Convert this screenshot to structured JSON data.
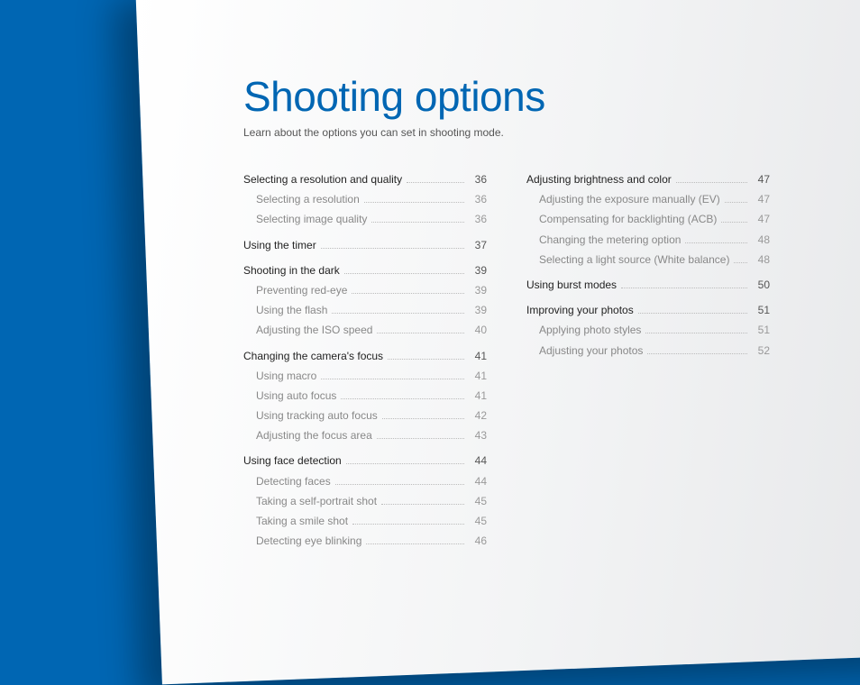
{
  "title": "Shooting options",
  "subtitle": "Learn about the options you can set in shooting mode.",
  "colors": {
    "background": "#0066b3",
    "title": "#0066b3",
    "heading_text": "#222222",
    "sub_text": "#888888",
    "page_gradient_start": "#ffffff",
    "page_gradient_end": "#e5e6e8",
    "dot_leader": "#bbbbbb"
  },
  "typography": {
    "title_fontsize": 46,
    "title_weight": 300,
    "body_fontsize": 12,
    "line_height": 1.85
  },
  "toc": {
    "left": [
      {
        "heading": {
          "label": "Selecting a resolution and quality",
          "page": "36"
        },
        "items": [
          {
            "label": "Selecting a resolution",
            "page": "36"
          },
          {
            "label": "Selecting image quality",
            "page": "36"
          }
        ]
      },
      {
        "heading": {
          "label": "Using the timer",
          "page": "37"
        },
        "items": []
      },
      {
        "heading": {
          "label": "Shooting in the dark",
          "page": "39"
        },
        "items": [
          {
            "label": "Preventing red-eye",
            "page": "39"
          },
          {
            "label": "Using the flash",
            "page": "39"
          },
          {
            "label": "Adjusting the ISO speed",
            "page": "40"
          }
        ]
      },
      {
        "heading": {
          "label": "Changing the camera's focus",
          "page": "41"
        },
        "items": [
          {
            "label": "Using macro",
            "page": "41"
          },
          {
            "label": "Using auto focus",
            "page": "41"
          },
          {
            "label": "Using tracking auto focus",
            "page": "42"
          },
          {
            "label": "Adjusting the focus area",
            "page": "43"
          }
        ]
      },
      {
        "heading": {
          "label": "Using face detection",
          "page": "44"
        },
        "items": [
          {
            "label": "Detecting faces",
            "page": "44"
          },
          {
            "label": "Taking a self-portrait shot",
            "page": "45"
          },
          {
            "label": "Taking a smile shot",
            "page": "45"
          },
          {
            "label": "Detecting eye blinking",
            "page": "46"
          }
        ]
      }
    ],
    "right": [
      {
        "heading": {
          "label": "Adjusting brightness and color",
          "page": "47"
        },
        "items": [
          {
            "label": "Adjusting the exposure manually (EV)",
            "page": "47"
          },
          {
            "label": "Compensating for backlighting (ACB)",
            "page": "47"
          },
          {
            "label": "Changing the metering option",
            "page": "48"
          },
          {
            "label": "Selecting a light source (White balance)",
            "page": "48"
          }
        ]
      },
      {
        "heading": {
          "label": "Using burst modes",
          "page": "50"
        },
        "items": []
      },
      {
        "heading": {
          "label": "Improving your photos",
          "page": "51"
        },
        "items": [
          {
            "label": "Applying photo styles",
            "page": "51"
          },
          {
            "label": "Adjusting your photos",
            "page": "52"
          }
        ]
      }
    ]
  }
}
